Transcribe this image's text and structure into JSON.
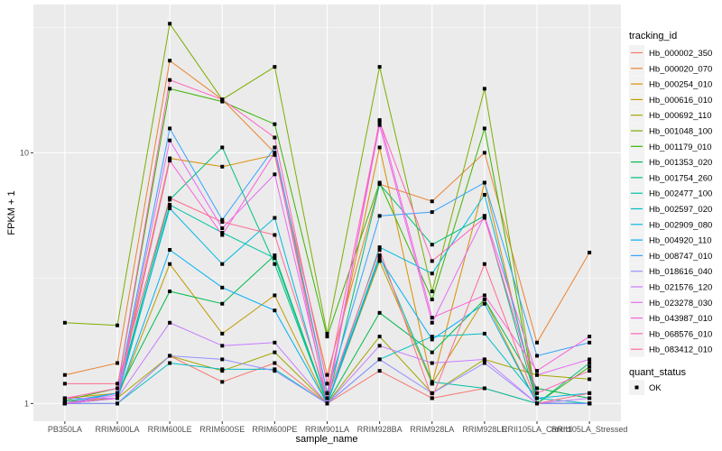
{
  "chart_data": {
    "type": "line",
    "xlabel": "sample_name",
    "ylabel": "FPKM + 1",
    "yscale": "log10",
    "ylim": [
      0.85,
      39
    ],
    "yticks": [
      1,
      10
    ],
    "ytick_labels": [
      "1",
      "10"
    ],
    "grid": true,
    "legend_position": "right",
    "legend_title": "tracking_id",
    "shape_legend_title": "quant_status",
    "shape_legend_items": [
      "OK"
    ],
    "categories": [
      "PB350LA",
      "RRIM600LA",
      "RRIM600LE",
      "RRIM600SE",
      "RRIM600PE",
      "RRIM901LA",
      "RRIM928BA",
      "RRIM928LA",
      "RRIM928LE",
      "RRII105LA_Control",
      "RRII105LA_Stressed"
    ],
    "series": [
      {
        "name": "Hb_000002_350",
        "color": "#F8766D",
        "values": [
          1.0,
          1.0,
          1.55,
          1.22,
          1.45,
          1.0,
          1.35,
          1.05,
          1.15,
          1.0,
          1.0
        ]
      },
      {
        "name": "Hb_000020_070",
        "color": "#EA8331",
        "values": [
          1.3,
          1.45,
          23.3,
          16.3,
          10.0,
          1.3,
          7.5,
          6.4,
          10.0,
          1.75,
          4.0
        ]
      },
      {
        "name": "Hb_000254_010",
        "color": "#D89000",
        "values": [
          1.05,
          1.1,
          9.5,
          8.8,
          9.8,
          1.1,
          10.5,
          1.2,
          7.6,
          1.0,
          1.0
        ]
      },
      {
        "name": "Hb_000616_010",
        "color": "#C09B00",
        "values": [
          1.02,
          1.05,
          3.6,
          1.9,
          2.7,
          1.0,
          3.7,
          1.2,
          2.6,
          1.0,
          1.0
        ]
      },
      {
        "name": "Hb_000692_110",
        "color": "#A3A500",
        "values": [
          1.0,
          1.05,
          1.55,
          1.35,
          1.6,
          1.0,
          1.85,
          1.1,
          1.5,
          1.3,
          1.25
        ]
      },
      {
        "name": "Hb_001048_100",
        "color": "#7CAE00",
        "values": [
          2.1,
          2.05,
          32.7,
          16.3,
          22.0,
          1.9,
          22.0,
          2.8,
          18.0,
          1.0,
          1.0
        ]
      },
      {
        "name": "Hb_001179_010",
        "color": "#39B600",
        "values": [
          1.03,
          1.15,
          18.0,
          16.0,
          13.0,
          1.85,
          7.6,
          2.6,
          12.5,
          1.0,
          1.4
        ]
      },
      {
        "name": "Hb_001353_020",
        "color": "#00BB4E",
        "values": [
          1.0,
          1.1,
          2.8,
          2.5,
          3.9,
          1.0,
          2.3,
          1.6,
          2.6,
          1.15,
          1.05
        ]
      },
      {
        "name": "Hb_001754_260",
        "color": "#00BF7D",
        "values": [
          1.0,
          1.1,
          6.5,
          10.5,
          3.6,
          1.0,
          7.5,
          4.3,
          5.6,
          1.0,
          1.45
        ]
      },
      {
        "name": "Hb_002477_100",
        "color": "#00C1A3",
        "values": [
          1.0,
          1.05,
          6.2,
          4.8,
          3.8,
          1.0,
          3.9,
          1.22,
          1.15,
          1.0,
          1.0
        ]
      },
      {
        "name": "Hb_002597_020",
        "color": "#00BFC4",
        "values": [
          1.0,
          1.0,
          1.45,
          1.37,
          1.37,
          1.0,
          1.5,
          1.85,
          1.9,
          1.05,
          1.0
        ]
      },
      {
        "name": "Hb_002909_080",
        "color": "#00BAE0",
        "values": [
          1.02,
          1.1,
          6.0,
          3.6,
          5.5,
          1.0,
          4.2,
          3.3,
          6.8,
          1.05,
          1.1
        ]
      },
      {
        "name": "Hb_004920_110",
        "color": "#00B0F6",
        "values": [
          1.0,
          1.05,
          4.1,
          2.9,
          2.35,
          1.0,
          3.8,
          1.8,
          2.5,
          1.0,
          1.0
        ]
      },
      {
        "name": "Hb_008747_010",
        "color": "#35A2FF",
        "values": [
          1.0,
          1.1,
          12.5,
          5.4,
          10.5,
          1.1,
          5.6,
          5.8,
          7.6,
          1.55,
          1.75
        ]
      },
      {
        "name": "Hb_018616_040",
        "color": "#9590FF",
        "values": [
          1.0,
          1.0,
          1.55,
          1.5,
          1.35,
          1.0,
          1.5,
          1.1,
          1.45,
          1.0,
          1.0
        ]
      },
      {
        "name": "Hb_021576_120",
        "color": "#C77CFF",
        "values": [
          1.05,
          1.05,
          2.1,
          1.7,
          1.75,
          1.0,
          1.7,
          1.45,
          1.5,
          1.0,
          1.05
        ]
      },
      {
        "name": "Hb_023278_030",
        "color": "#E76BF3",
        "values": [
          1.0,
          1.08,
          11.2,
          5.0,
          8.2,
          1.05,
          12.9,
          2.1,
          5.6,
          1.3,
          1.5
        ]
      },
      {
        "name": "Hb_043987_010",
        "color": "#FA62DB",
        "values": [
          1.0,
          1.05,
          9.3,
          4.7,
          10.0,
          1.0,
          13.5,
          2.2,
          2.7,
          1.35,
          1.85
        ]
      },
      {
        "name": "Hb_068576_010",
        "color": "#FF62BC",
        "values": [
          1.05,
          1.15,
          19.5,
          16.3,
          11.5,
          1.2,
          13.3,
          3.7,
          5.5,
          1.1,
          1.35
        ]
      },
      {
        "name": "Hb_083412_010",
        "color": "#FF6C91",
        "values": [
          1.2,
          1.2,
          6.6,
          5.3,
          4.7,
          1.05,
          4.1,
          1.05,
          3.6,
          1.0,
          1.1
        ]
      }
    ]
  }
}
